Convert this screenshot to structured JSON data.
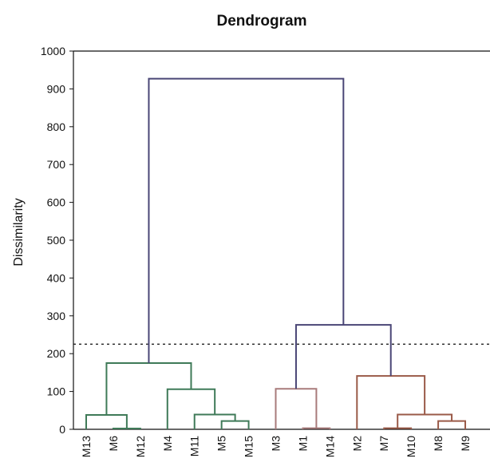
{
  "chart_data": {
    "type": "dendrogram",
    "title": "Dendrogram",
    "ylabel": "Dissimilarity",
    "ylim": [
      0,
      1000
    ],
    "yticks": [
      0,
      100,
      200,
      300,
      400,
      500,
      600,
      700,
      800,
      900,
      1000
    ],
    "cut_threshold": 225,
    "leaves": [
      "M13",
      "M6",
      "M12",
      "M4",
      "M11",
      "M5",
      "M15",
      "M3",
      "M1",
      "M14",
      "M2",
      "M7",
      "M10",
      "M8",
      "M9"
    ],
    "colors": {
      "root": "#4a4676",
      "cluster_green": "#3f7a58",
      "cluster_pink": "#a87b7b",
      "cluster_brown": "#9a5a48"
    },
    "merges": [
      {
        "id": "A",
        "children": [
          "M6",
          "M12"
        ],
        "height": 2,
        "color": "cluster_green"
      },
      {
        "id": "B",
        "children": [
          "M13",
          "A"
        ],
        "height": 38,
        "color": "cluster_green"
      },
      {
        "id": "C",
        "children": [
          "M5",
          "M15"
        ],
        "height": 22,
        "color": "cluster_green"
      },
      {
        "id": "D",
        "children": [
          "M11",
          "C"
        ],
        "height": 39,
        "color": "cluster_green"
      },
      {
        "id": "E",
        "children": [
          "M4",
          "D"
        ],
        "height": 106,
        "color": "cluster_green"
      },
      {
        "id": "F",
        "children": [
          "B",
          "E"
        ],
        "height": 175,
        "color": "cluster_green"
      },
      {
        "id": "G",
        "children": [
          "M1",
          "M14"
        ],
        "height": 3,
        "color": "cluster_pink"
      },
      {
        "id": "H",
        "children": [
          "M3",
          "G"
        ],
        "height": 107,
        "color": "cluster_pink"
      },
      {
        "id": "I",
        "children": [
          "M7",
          "M10"
        ],
        "height": 3,
        "color": "cluster_brown"
      },
      {
        "id": "J",
        "children": [
          "M8",
          "M9"
        ],
        "height": 22,
        "color": "cluster_brown"
      },
      {
        "id": "K",
        "children": [
          "I",
          "J"
        ],
        "height": 39,
        "color": "cluster_brown"
      },
      {
        "id": "L",
        "children": [
          "M2",
          "K"
        ],
        "height": 141,
        "color": "cluster_brown"
      },
      {
        "id": "M",
        "children": [
          "H",
          "L"
        ],
        "height": 276,
        "color": "root"
      },
      {
        "id": "N",
        "children": [
          "F",
          "M"
        ],
        "height": 927,
        "color": "root"
      }
    ]
  }
}
